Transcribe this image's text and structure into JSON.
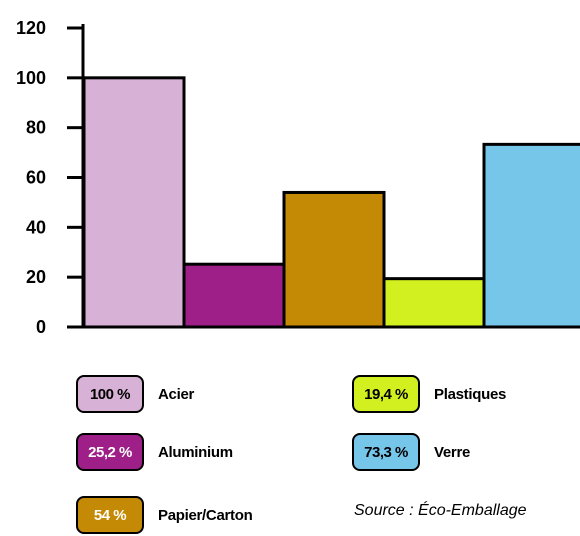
{
  "chart_data": {
    "type": "bar",
    "categories": [
      "Acier",
      "Aluminium",
      "Papier/Carton",
      "Plastiques",
      "Verre"
    ],
    "values": [
      100,
      25.2,
      54,
      19.4,
      73.3
    ],
    "colors": [
      "#d8b1d6",
      "#9d1f87",
      "#c48a05",
      "#d2ef1f",
      "#76c6ea"
    ],
    "ylim": [
      0,
      120
    ],
    "yticks": [
      "0",
      "20",
      "40",
      "60",
      "80",
      "100",
      "120"
    ],
    "grid": false,
    "title": "",
    "xlabel": "",
    "ylabel": ""
  },
  "legend": [
    {
      "value_label": "100 %",
      "name": "Acier"
    },
    {
      "value_label": "25,2 %",
      "name": "Aluminium"
    },
    {
      "value_label": "54 %",
      "name": "Papier/Carton"
    },
    {
      "value_label": "19,4 %",
      "name": "Plastiques"
    },
    {
      "value_label": "73,3 %",
      "name": "Verre"
    }
  ],
  "source": "Source : Éco-Emballage"
}
